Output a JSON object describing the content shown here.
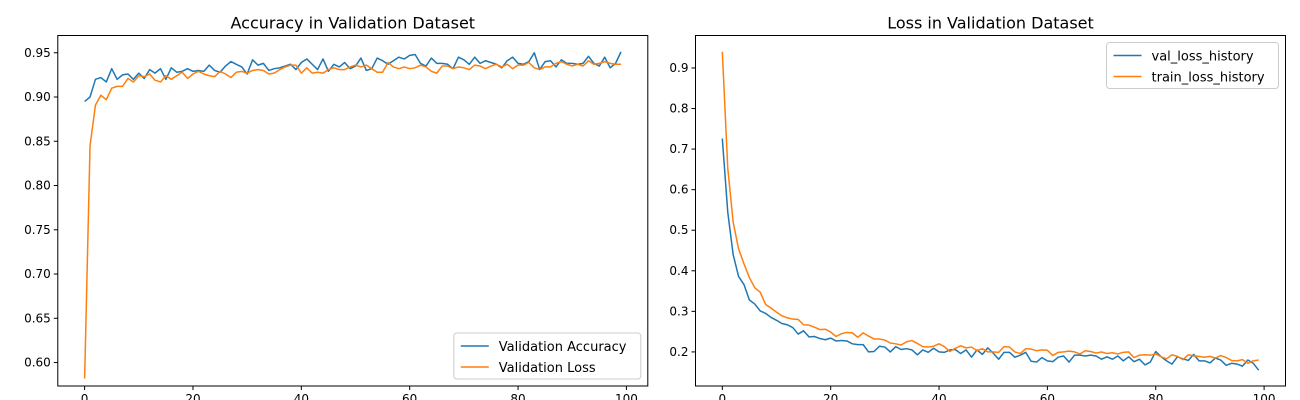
{
  "colors": {
    "series1": "#1f77b4",
    "series2": "#ff7f0e",
    "axis": "#000000",
    "legend_border": "#cccccc"
  },
  "chart_data": [
    {
      "type": "line",
      "title": "Accuracy in Validation Dataset",
      "xlabel": "",
      "ylabel": "",
      "xlim": [
        -4.95,
        103.95
      ],
      "ylim": [
        0.5735,
        0.9695
      ],
      "grid": false,
      "legend_placement": "lower-right",
      "xticks": [
        0,
        20,
        40,
        60,
        80,
        100
      ],
      "xtick_labels": [
        "0",
        "20",
        "40",
        "60",
        "80",
        "100"
      ],
      "yticks": [
        0.6,
        0.65,
        0.7,
        0.75,
        0.8,
        0.85,
        0.9,
        0.95
      ],
      "ytick_labels": [
        "0.60",
        "0.65",
        "0.70",
        "0.75",
        "0.80",
        "0.85",
        "0.90",
        "0.95"
      ],
      "series": [
        {
          "name": "Validation Accuracy",
          "color": "#1f77b4",
          "x": [
            0,
            1,
            2,
            3,
            4,
            5,
            6,
            7,
            8,
            9,
            10,
            11,
            12,
            13,
            14,
            15,
            16,
            17,
            18,
            19,
            20,
            21,
            22,
            23,
            24,
            25,
            26,
            27,
            28,
            29,
            30,
            31,
            32,
            33,
            34,
            35,
            36,
            37,
            38,
            39,
            40,
            41,
            42,
            43,
            44,
            45,
            46,
            47,
            48,
            49,
            50,
            51,
            52,
            53,
            54,
            55,
            56,
            57,
            58,
            59,
            60,
            61,
            62,
            63,
            64,
            65,
            66,
            67,
            68,
            69,
            70,
            71,
            72,
            73,
            74,
            75,
            76,
            77,
            78,
            79,
            80,
            81,
            82,
            83,
            84,
            85,
            86,
            87,
            88,
            89,
            90,
            91,
            92,
            93,
            94,
            95,
            96,
            97,
            98,
            99
          ],
          "values": [
            0.895,
            0.9,
            0.92,
            0.922,
            0.917,
            0.932,
            0.92,
            0.925,
            0.926,
            0.92,
            0.927,
            0.921,
            0.931,
            0.927,
            0.932,
            0.92,
            0.933,
            0.928,
            0.929,
            0.932,
            0.929,
            0.93,
            0.929,
            0.936,
            0.93,
            0.928,
            0.935,
            0.94,
            0.937,
            0.934,
            0.926,
            0.942,
            0.936,
            0.938,
            0.93,
            0.932,
            0.933,
            0.935,
            0.937,
            0.931,
            0.939,
            0.943,
            0.937,
            0.931,
            0.943,
            0.929,
            0.937,
            0.934,
            0.939,
            0.932,
            0.935,
            0.944,
            0.93,
            0.932,
            0.944,
            0.941,
            0.937,
            0.941,
            0.945,
            0.943,
            0.947,
            0.948,
            0.938,
            0.935,
            0.944,
            0.938,
            0.938,
            0.937,
            0.932,
            0.945,
            0.942,
            0.937,
            0.945,
            0.938,
            0.941,
            0.939,
            0.937,
            0.933,
            0.941,
            0.945,
            0.938,
            0.937,
            0.94,
            0.95,
            0.931,
            0.94,
            0.941,
            0.934,
            0.942,
            0.938,
            0.938,
            0.937,
            0.938,
            0.946,
            0.938,
            0.935,
            0.945,
            0.933,
            0.938,
            0.951
          ]
        },
        {
          "name": "Validation Loss",
          "color": "#ff7f0e",
          "x": [
            0,
            1,
            2,
            3,
            4,
            5,
            6,
            7,
            8,
            9,
            10,
            11,
            12,
            13,
            14,
            15,
            16,
            17,
            18,
            19,
            20,
            21,
            22,
            23,
            24,
            25,
            26,
            27,
            28,
            29,
            30,
            31,
            32,
            33,
            34,
            35,
            36,
            37,
            38,
            39,
            40,
            41,
            42,
            43,
            44,
            45,
            46,
            47,
            48,
            49,
            50,
            51,
            52,
            53,
            54,
            55,
            56,
            57,
            58,
            59,
            60,
            61,
            62,
            63,
            64,
            65,
            66,
            67,
            68,
            69,
            70,
            71,
            72,
            73,
            74,
            75,
            76,
            77,
            78,
            79,
            80,
            81,
            82,
            83,
            84,
            85,
            86,
            87,
            88,
            89,
            90,
            91,
            92,
            93,
            94,
            95,
            96,
            97,
            98,
            99
          ],
          "values": [
            0.582,
            0.845,
            0.891,
            0.902,
            0.897,
            0.91,
            0.912,
            0.912,
            0.921,
            0.917,
            0.924,
            0.923,
            0.926,
            0.919,
            0.917,
            0.924,
            0.92,
            0.924,
            0.928,
            0.921,
            0.926,
            0.929,
            0.926,
            0.924,
            0.923,
            0.929,
            0.926,
            0.922,
            0.928,
            0.929,
            0.927,
            0.93,
            0.931,
            0.93,
            0.926,
            0.927,
            0.931,
            0.934,
            0.936,
            0.936,
            0.927,
            0.933,
            0.927,
            0.928,
            0.927,
            0.931,
            0.933,
            0.931,
            0.931,
            0.934,
            0.936,
            0.934,
            0.936,
            0.932,
            0.928,
            0.928,
            0.939,
            0.934,
            0.932,
            0.934,
            0.932,
            0.933,
            0.936,
            0.934,
            0.929,
            0.927,
            0.935,
            0.935,
            0.932,
            0.934,
            0.933,
            0.931,
            0.936,
            0.935,
            0.932,
            0.935,
            0.937,
            0.934,
            0.937,
            0.932,
            0.936,
            0.936,
            0.939,
            0.933,
            0.931,
            0.934,
            0.934,
            0.938,
            0.94,
            0.937,
            0.935,
            0.937,
            0.935,
            0.941,
            0.937,
            0.938,
            0.94,
            0.938,
            0.937,
            0.937
          ]
        }
      ]
    },
    {
      "type": "line",
      "title": "Loss in Validation Dataset",
      "xlabel": "",
      "ylabel": "",
      "xlim": [
        -4.95,
        103.95
      ],
      "ylim": [
        0.116,
        0.98
      ],
      "grid": false,
      "legend_placement": "upper-right",
      "xticks": [
        0,
        20,
        40,
        60,
        80,
        100
      ],
      "xtick_labels": [
        "0",
        "20",
        "40",
        "60",
        "80",
        "100"
      ],
      "yticks": [
        0.2,
        0.3,
        0.4,
        0.5,
        0.6,
        0.7,
        0.8,
        0.9
      ],
      "ytick_labels": [
        "0.2",
        "0.3",
        "0.4",
        "0.5",
        "0.6",
        "0.7",
        "0.8",
        "0.9"
      ],
      "series": [
        {
          "name": "val_loss_history",
          "color": "#1f77b4",
          "x": [
            0,
            1,
            2,
            3,
            4,
            5,
            6,
            7,
            8,
            9,
            10,
            11,
            12,
            13,
            14,
            15,
            16,
            17,
            18,
            19,
            20,
            21,
            22,
            23,
            24,
            25,
            26,
            27,
            28,
            29,
            30,
            31,
            32,
            33,
            34,
            35,
            36,
            37,
            38,
            39,
            40,
            41,
            42,
            43,
            44,
            45,
            46,
            47,
            48,
            49,
            50,
            51,
            52,
            53,
            54,
            55,
            56,
            57,
            58,
            59,
            60,
            61,
            62,
            63,
            64,
            65,
            66,
            67,
            68,
            69,
            70,
            71,
            72,
            73,
            74,
            75,
            76,
            77,
            78,
            79,
            80,
            81,
            82,
            83,
            84,
            85,
            86,
            87,
            88,
            89,
            90,
            91,
            92,
            93,
            94,
            95,
            96,
            97,
            98,
            99
          ],
          "values": [
            0.726,
            0.545,
            0.44,
            0.386,
            0.366,
            0.328,
            0.318,
            0.301,
            0.295,
            0.285,
            0.278,
            0.27,
            0.267,
            0.26,
            0.244,
            0.252,
            0.237,
            0.238,
            0.233,
            0.23,
            0.234,
            0.227,
            0.228,
            0.227,
            0.22,
            0.218,
            0.218,
            0.2,
            0.201,
            0.214,
            0.212,
            0.2,
            0.213,
            0.206,
            0.208,
            0.205,
            0.193,
            0.205,
            0.199,
            0.209,
            0.2,
            0.199,
            0.205,
            0.206,
            0.196,
            0.205,
            0.187,
            0.205,
            0.194,
            0.21,
            0.197,
            0.182,
            0.199,
            0.199,
            0.187,
            0.192,
            0.199,
            0.177,
            0.175,
            0.186,
            0.178,
            0.176,
            0.187,
            0.19,
            0.175,
            0.192,
            0.192,
            0.19,
            0.192,
            0.19,
            0.182,
            0.188,
            0.182,
            0.19,
            0.178,
            0.188,
            0.176,
            0.182,
            0.168,
            0.175,
            0.201,
            0.188,
            0.178,
            0.17,
            0.188,
            0.183,
            0.179,
            0.194,
            0.178,
            0.178,
            0.173,
            0.185,
            0.18,
            0.167,
            0.172,
            0.17,
            0.165,
            0.18,
            0.172,
            0.155
          ]
        },
        {
          "name": "train_loss_history",
          "color": "#ff7f0e",
          "x": [
            0,
            1,
            2,
            3,
            4,
            5,
            6,
            7,
            8,
            9,
            10,
            11,
            12,
            13,
            14,
            15,
            16,
            17,
            18,
            19,
            20,
            21,
            22,
            23,
            24,
            25,
            26,
            27,
            28,
            29,
            30,
            31,
            32,
            33,
            34,
            35,
            36,
            37,
            38,
            39,
            40,
            41,
            42,
            43,
            44,
            45,
            46,
            47,
            48,
            49,
            50,
            51,
            52,
            53,
            54,
            55,
            56,
            57,
            58,
            59,
            60,
            61,
            62,
            63,
            64,
            65,
            66,
            67,
            68,
            69,
            70,
            71,
            72,
            73,
            74,
            75,
            76,
            77,
            78,
            79,
            80,
            81,
            82,
            83,
            84,
            85,
            86,
            87,
            88,
            89,
            90,
            91,
            92,
            93,
            94,
            95,
            96,
            97,
            98,
            99
          ],
          "values": [
            0.94,
            0.654,
            0.52,
            0.454,
            0.417,
            0.383,
            0.358,
            0.347,
            0.317,
            0.308,
            0.298,
            0.289,
            0.284,
            0.281,
            0.28,
            0.267,
            0.266,
            0.261,
            0.255,
            0.256,
            0.249,
            0.238,
            0.245,
            0.248,
            0.247,
            0.236,
            0.247,
            0.239,
            0.232,
            0.232,
            0.229,
            0.222,
            0.22,
            0.217,
            0.225,
            0.228,
            0.221,
            0.213,
            0.212,
            0.214,
            0.22,
            0.213,
            0.201,
            0.209,
            0.215,
            0.21,
            0.212,
            0.203,
            0.208,
            0.2,
            0.2,
            0.199,
            0.213,
            0.212,
            0.2,
            0.196,
            0.208,
            0.207,
            0.203,
            0.205,
            0.204,
            0.191,
            0.199,
            0.2,
            0.202,
            0.2,
            0.195,
            0.203,
            0.201,
            0.197,
            0.2,
            0.196,
            0.198,
            0.195,
            0.199,
            0.2,
            0.186,
            0.192,
            0.193,
            0.192,
            0.195,
            0.188,
            0.183,
            0.193,
            0.189,
            0.181,
            0.193,
            0.19,
            0.189,
            0.187,
            0.189,
            0.185,
            0.191,
            0.186,
            0.179,
            0.178,
            0.181,
            0.172,
            0.178,
            0.18
          ]
        }
      ]
    }
  ]
}
